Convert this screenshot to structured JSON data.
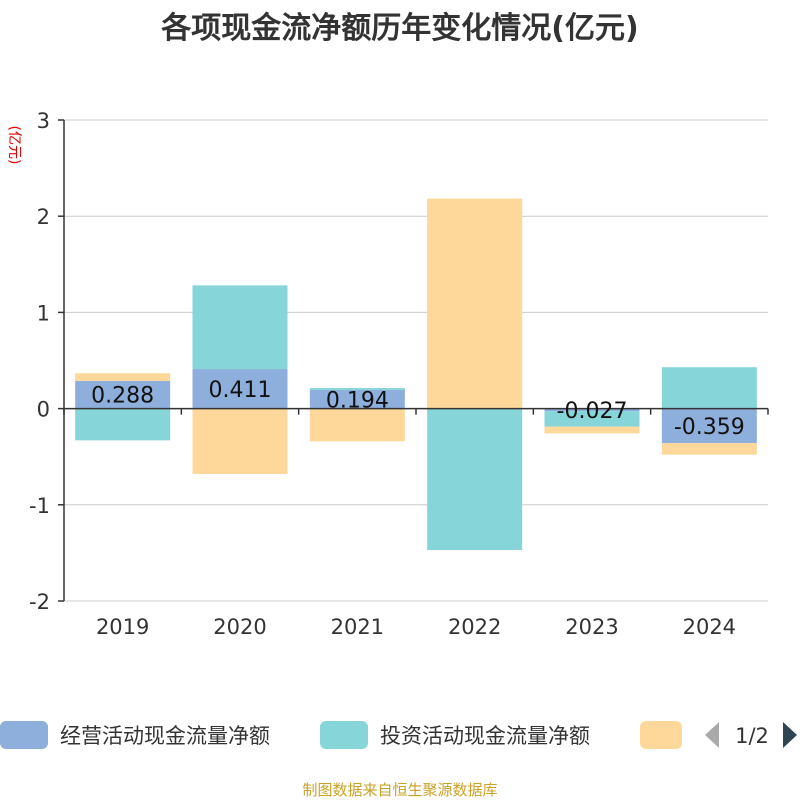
{
  "chart_data": {
    "type": "bar",
    "stacked": true,
    "title": "各项现金流净额历年变化情况(亿元)",
    "ylabel": "(亿元)",
    "categories": [
      "2019",
      "2020",
      "2021",
      "2022",
      "2023",
      "2024"
    ],
    "ylim": [
      -2,
      3
    ],
    "yticks": [
      -2,
      -1,
      0,
      1,
      2,
      3
    ],
    "grid": true,
    "series": [
      {
        "name": "经营活动现金流量净额",
        "color": "#8eaedb",
        "values": [
          0.288,
          0.411,
          0.194,
          0.003,
          -0.027,
          -0.359
        ],
        "labels": [
          "0.288",
          "0.411",
          "0.194",
          "",
          "-0.027",
          "-0.359"
        ]
      },
      {
        "name": "投资活动现金流量净额",
        "color": "#86d5d8",
        "values": [
          -0.33,
          0.87,
          0.02,
          -1.47,
          -0.16,
          0.43
        ]
      },
      {
        "name": "",
        "color": "#fdd89a",
        "values": [
          0.08,
          -0.68,
          -0.34,
          2.18,
          -0.07,
          -0.12
        ]
      }
    ],
    "legend": {
      "placement": "bottom",
      "page_indicator": "1/2"
    }
  },
  "footer": {
    "source": "制图数据来自恒生聚源数据库"
  }
}
